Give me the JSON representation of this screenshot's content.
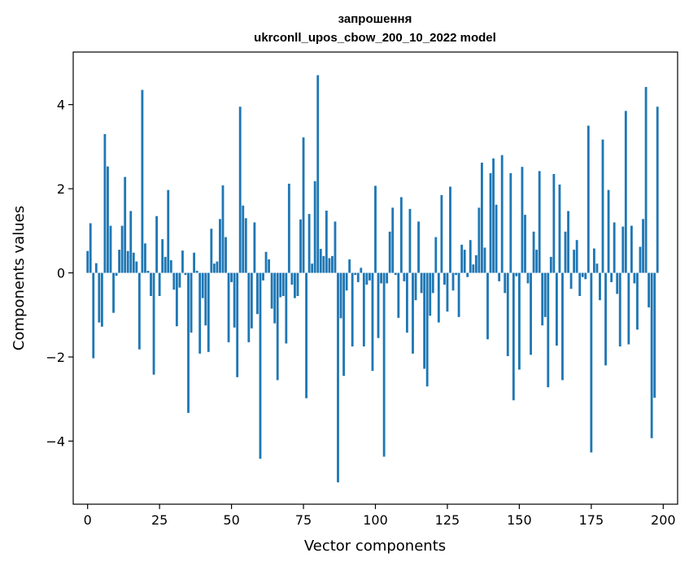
{
  "chart_data": {
    "type": "bar",
    "title": "запрошення",
    "subtitle": "ukrconll_upos_cbow_200_10_2022 model",
    "xlabel": "Vector components",
    "ylabel": "Components values",
    "xlim": [
      -5,
      205
    ],
    "ylim": [
      -5.5,
      5.25
    ],
    "x_ticks": [
      0,
      25,
      50,
      75,
      100,
      125,
      150,
      175,
      200
    ],
    "y_ticks": [
      -4,
      -2,
      0,
      2,
      4
    ],
    "y_tick_labels": [
      "−4",
      "−2",
      "0",
      "2",
      "4"
    ],
    "grid": false,
    "legend": "none",
    "bar_color": "#1f77b4",
    "values": [
      0.52,
      1.18,
      -2.03,
      0.23,
      -1.18,
      -1.28,
      3.3,
      2.53,
      1.12,
      -0.95,
      -0.07,
      0.55,
      1.12,
      2.28,
      0.52,
      1.47,
      0.48,
      0.27,
      -1.82,
      4.35,
      0.7,
      0.05,
      -0.55,
      -2.42,
      1.35,
      -0.55,
      0.8,
      0.38,
      1.97,
      0.3,
      -0.4,
      -1.27,
      -0.35,
      0.53,
      -0.05,
      -3.33,
      -1.42,
      0.48,
      0.05,
      -1.92,
      -0.6,
      -1.25,
      -1.88,
      1.05,
      0.22,
      0.27,
      1.28,
      2.08,
      0.85,
      -1.65,
      -0.22,
      -1.3,
      -2.48,
      3.95,
      1.6,
      1.3,
      -1.65,
      -1.32,
      1.2,
      -0.98,
      -4.42,
      -0.18,
      0.5,
      0.32,
      -0.85,
      -1.2,
      -2.55,
      -0.58,
      -0.55,
      -1.68,
      2.12,
      -0.28,
      -0.6,
      -0.55,
      1.27,
      3.22,
      -2.98,
      1.4,
      0.22,
      2.18,
      4.7,
      0.57,
      0.4,
      1.48,
      0.35,
      0.4,
      1.22,
      -4.98,
      -1.08,
      -2.45,
      -0.42,
      0.32,
      -1.75,
      -0.05,
      -0.22,
      0.12,
      -1.75,
      -0.28,
      -0.18,
      -2.33,
      2.07,
      -1.55,
      -0.25,
      -4.37,
      -0.25,
      0.98,
      1.55,
      -0.05,
      -1.07,
      1.8,
      -0.2,
      -1.42,
      1.52,
      -1.92,
      -0.65,
      1.22,
      -0.48,
      -2.28,
      -2.7,
      -1.02,
      -0.48,
      0.85,
      -1.18,
      1.85,
      -0.28,
      -0.92,
      2.05,
      -0.42,
      -0.05,
      -1.05,
      0.67,
      0.55,
      -0.1,
      0.78,
      0.2,
      0.42,
      1.55,
      2.62,
      0.6,
      -1.58,
      2.37,
      2.72,
      1.62,
      -0.2,
      2.8,
      -0.48,
      -1.98,
      2.37,
      -3.03,
      -0.08,
      -2.3,
      2.52,
      1.38,
      -0.25,
      -1.95,
      0.98,
      0.55,
      2.42,
      -1.25,
      -1.05,
      -2.72,
      0.38,
      2.35,
      -1.73,
      2.1,
      -2.55,
      0.98,
      1.47,
      -0.38,
      0.55,
      0.78,
      -0.55,
      -0.1,
      -0.15,
      3.5,
      -4.27,
      0.58,
      0.22,
      -0.65,
      3.17,
      -2.2,
      1.97,
      -0.22,
      1.2,
      -0.5,
      -1.75,
      1.1,
      3.85,
      -1.7,
      1.12,
      -0.25,
      -1.35,
      0.62,
      1.28,
      4.42,
      -0.82,
      -3.93,
      -2.97,
      3.95
    ]
  }
}
